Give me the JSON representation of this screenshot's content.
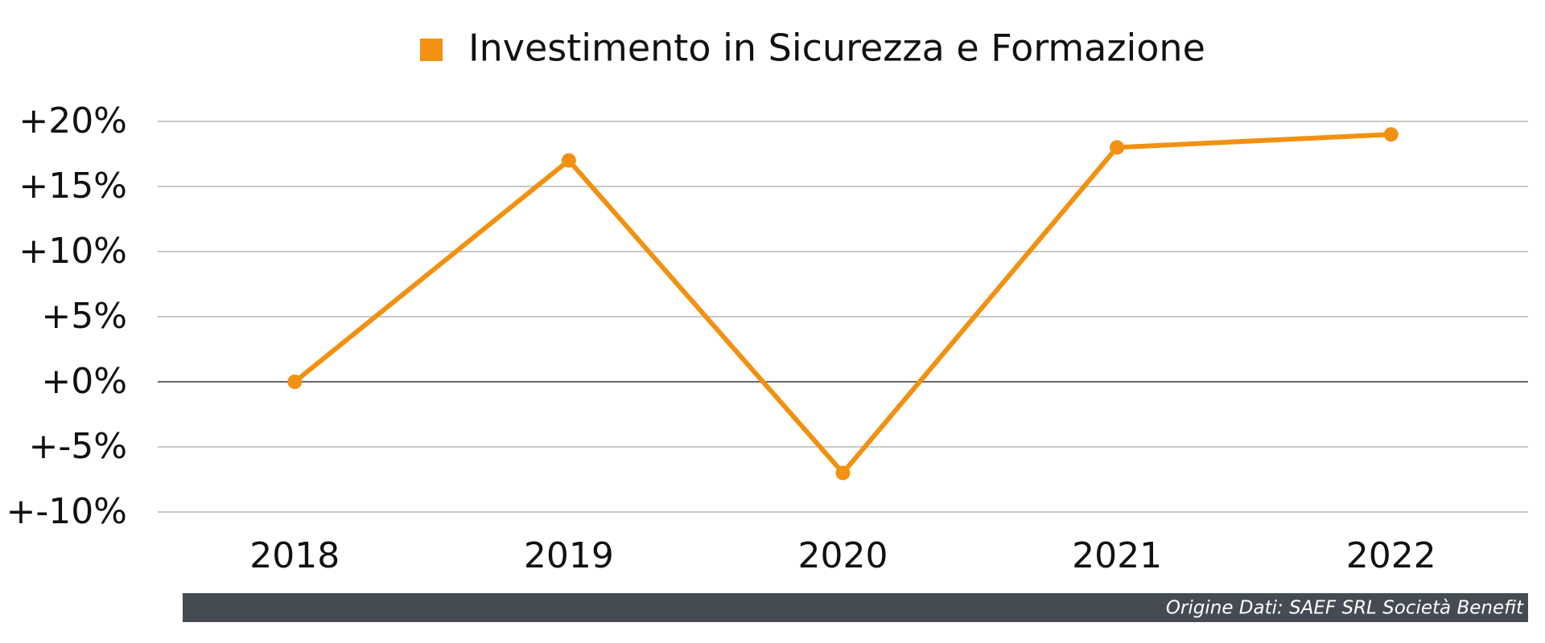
{
  "chart_data": {
    "type": "line",
    "categories": [
      "2018",
      "2019",
      "2020",
      "2021",
      "2022"
    ],
    "series": [
      {
        "name": "Investimento in Sicurezza e Formazione",
        "color": "#f29111",
        "values": [
          0,
          17,
          -7,
          18,
          19
        ]
      }
    ],
    "ylim": [
      -10,
      20
    ],
    "yticks": [
      {
        "value": -10,
        "label": "+-10%"
      },
      {
        "value": -5,
        "label": "+-5%"
      },
      {
        "value": 0,
        "label": "+0%"
      },
      {
        "value": 5,
        "label": "+5%"
      },
      {
        "value": 10,
        "label": "+10%"
      },
      {
        "value": 15,
        "label": "+15%"
      },
      {
        "value": 20,
        "label": "+20%"
      }
    ],
    "grid": true,
    "source": "Origine Dati: SAEF SRL Società Benefit"
  }
}
